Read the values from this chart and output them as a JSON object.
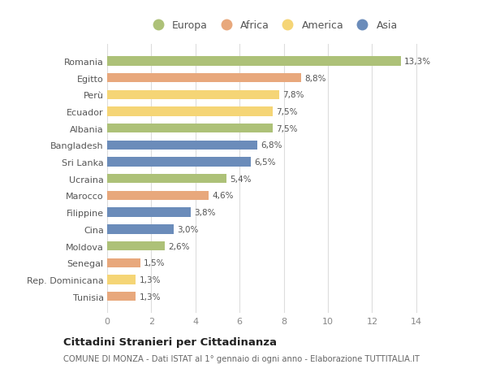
{
  "countries": [
    "Romania",
    "Egitto",
    "Perù",
    "Ecuador",
    "Albania",
    "Bangladesh",
    "Sri Lanka",
    "Ucraina",
    "Marocco",
    "Filippine",
    "Cina",
    "Moldova",
    "Senegal",
    "Rep. Dominicana",
    "Tunisia"
  ],
  "values": [
    13.3,
    8.8,
    7.8,
    7.5,
    7.5,
    6.8,
    6.5,
    5.4,
    4.6,
    3.8,
    3.0,
    2.6,
    1.5,
    1.3,
    1.3
  ],
  "continents": [
    "Europa",
    "Africa",
    "America",
    "America",
    "Europa",
    "Asia",
    "Asia",
    "Europa",
    "Africa",
    "Asia",
    "Asia",
    "Europa",
    "Africa",
    "America",
    "Africa"
  ],
  "colors": {
    "Europa": "#adc178",
    "Africa": "#e8a87c",
    "America": "#f5d576",
    "Asia": "#6b8cba"
  },
  "legend_order": [
    "Europa",
    "Africa",
    "America",
    "Asia"
  ],
  "title": "Cittadini Stranieri per Cittadinanza",
  "subtitle": "COMUNE DI MONZA - Dati ISTAT al 1° gennaio di ogni anno - Elaborazione TUTTITALIA.IT",
  "xlim": [
    0,
    15.0
  ],
  "xticks": [
    0,
    2,
    4,
    6,
    8,
    10,
    12,
    14
  ],
  "bg_color": "#ffffff",
  "grid_color": "#dddddd",
  "bar_height": 0.55
}
